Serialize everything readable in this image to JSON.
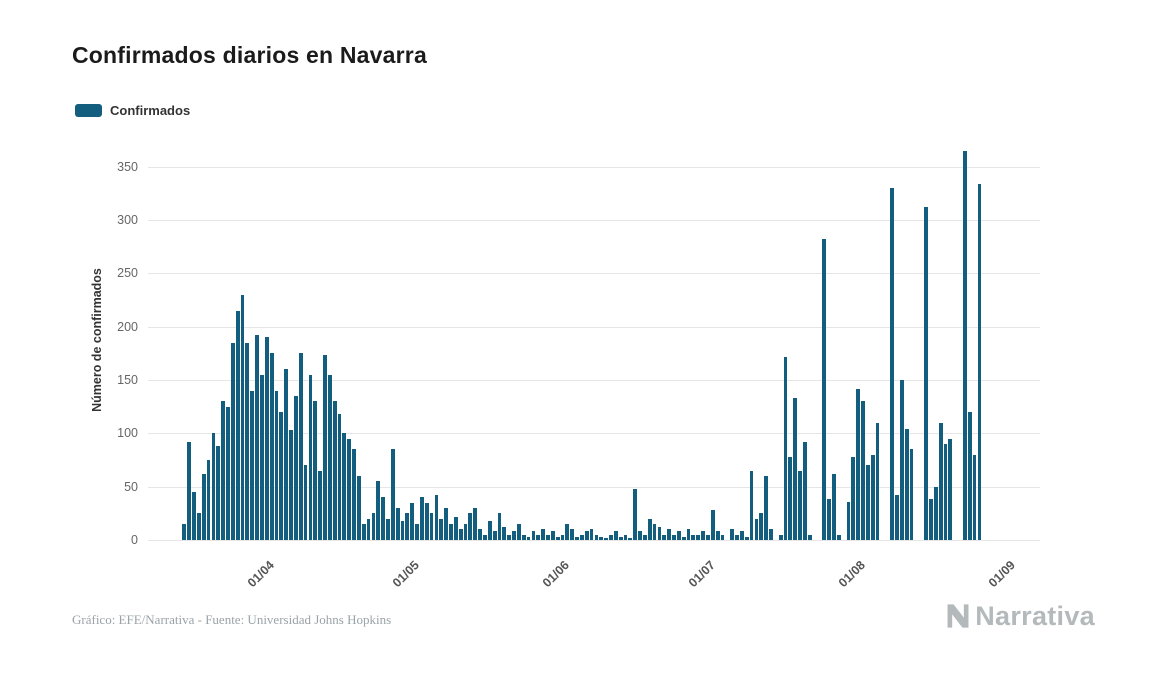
{
  "header": {
    "title": "Confirmados diarios en Navarra"
  },
  "legend": {
    "label": "Confirmados",
    "color": "#135e7e"
  },
  "footer": {
    "credit": "Gráfico: EFE/Narrativa - Fuente: Universidad Johns Hopkins",
    "brand": "Narrativa"
  },
  "chart_data": {
    "type": "bar",
    "title": "Confirmados diarios en Navarra",
    "ylabel": "Número de confirmados",
    "xlabel": "",
    "ylim": [
      0,
      375
    ],
    "yticks": [
      0,
      50,
      100,
      150,
      200,
      250,
      300,
      350
    ],
    "grid": "horizontal",
    "legend_position": "top-left",
    "x_tick_labels": [
      "01/04",
      "01/05",
      "01/06",
      "01/07",
      "01/08",
      "01/09"
    ],
    "x_tick_indices": [
      24,
      54,
      85,
      115,
      146,
      177
    ],
    "series": [
      {
        "name": "Confirmados",
        "color": "#135e7e",
        "values": [
          0,
          0,
          0,
          0,
          0,
          0,
          0,
          15,
          92,
          45,
          25,
          62,
          75,
          100,
          88,
          130,
          125,
          185,
          215,
          230,
          185,
          140,
          192,
          155,
          190,
          175,
          140,
          120,
          160,
          103,
          135,
          175,
          70,
          155,
          130,
          65,
          173,
          155,
          130,
          118,
          100,
          95,
          85,
          60,
          15,
          20,
          25,
          55,
          40,
          20,
          85,
          30,
          18,
          25,
          35,
          15,
          40,
          35,
          25,
          42,
          20,
          30,
          15,
          22,
          10,
          15,
          25,
          30,
          10,
          5,
          18,
          8,
          25,
          12,
          5,
          8,
          15,
          5,
          3,
          8,
          5,
          10,
          5,
          8,
          3,
          5,
          15,
          10,
          3,
          5,
          8,
          10,
          5,
          3,
          2,
          5,
          8,
          3,
          5,
          2,
          48,
          8,
          5,
          20,
          15,
          12,
          5,
          10,
          5,
          8,
          3,
          10,
          5,
          5,
          8,
          5,
          28,
          8,
          5,
          0,
          10,
          5,
          8,
          3,
          65,
          20,
          25,
          60,
          10,
          0,
          5,
          172,
          78,
          133,
          65,
          92,
          5,
          0,
          0,
          282,
          38,
          62,
          5,
          0,
          36,
          78,
          142,
          130,
          70,
          80,
          110,
          0,
          0,
          330,
          42,
          150,
          104,
          85,
          0,
          0,
          312,
          38,
          50,
          110,
          90,
          95,
          0,
          0,
          365,
          120,
          80,
          334,
          0,
          0,
          0,
          0,
          0,
          0,
          0,
          0,
          0,
          0,
          0,
          0
        ]
      }
    ]
  }
}
